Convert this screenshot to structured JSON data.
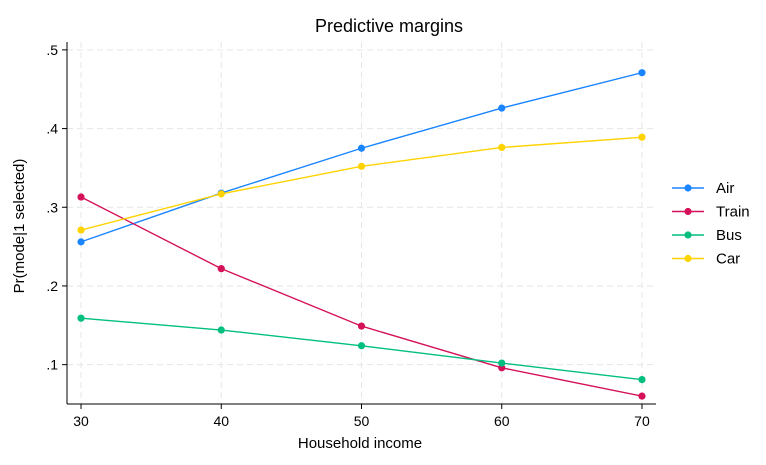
{
  "chart_data": {
    "type": "line",
    "title": "Predictive margins",
    "xlabel": "Household income",
    "ylabel": "Pr(mode|1 selected)",
    "x": [
      30,
      40,
      50,
      60,
      70
    ],
    "xlim": [
      29,
      71
    ],
    "ylim": [
      0.05,
      0.51
    ],
    "xticks": [
      30,
      40,
      50,
      60,
      70
    ],
    "xtick_labels": [
      "30",
      "40",
      "50",
      "60",
      "70"
    ],
    "yticks": [
      0.1,
      0.2,
      0.3,
      0.4,
      0.5
    ],
    "ytick_labels": [
      ".1",
      ".2",
      ".3",
      ".4",
      ".5"
    ],
    "grid": true,
    "legend_position": "right",
    "series": [
      {
        "name": "Air",
        "color": "#1a85ff",
        "values": [
          0.256,
          0.318,
          0.375,
          0.426,
          0.471
        ]
      },
      {
        "name": "Train",
        "color": "#d41159",
        "values": [
          0.313,
          0.222,
          0.149,
          0.096,
          0.06
        ]
      },
      {
        "name": "Bus",
        "color": "#00bf7f",
        "values": [
          0.159,
          0.144,
          0.124,
          0.102,
          0.081
        ]
      },
      {
        "name": "Car",
        "color": "#ffd300",
        "values": [
          0.271,
          0.317,
          0.352,
          0.376,
          0.389
        ]
      }
    ]
  }
}
